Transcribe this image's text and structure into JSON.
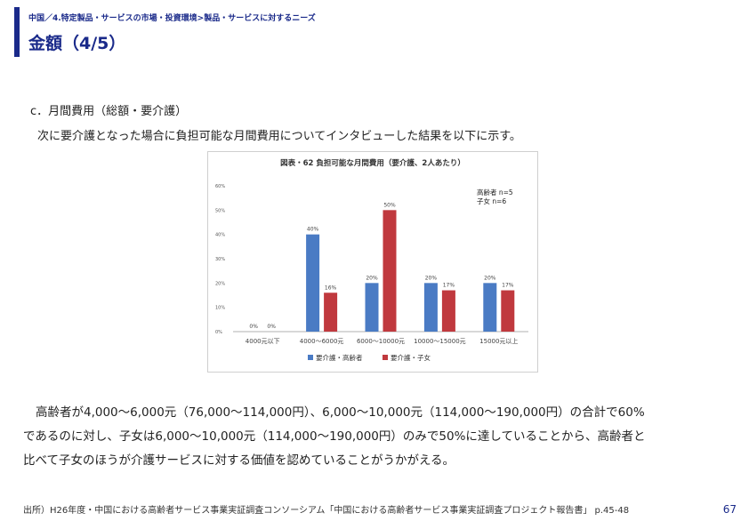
{
  "header": {
    "breadcrumb": "中国／4.特定製品・サービスの市場・投資環境>製品・サービスに対するニーズ",
    "title": "金額（4/5）"
  },
  "section": {
    "heading": "c．月間費用（総額・要介護）",
    "intro": "次に要介護となった場合に負担可能な月間費用についてインタビューした結果を以下に示す。"
  },
  "chart_data": {
    "type": "bar",
    "title": "図表・62 負担可能な月間費用（要介護、2人あたり）",
    "categories": [
      "4000元以下",
      "4000～6000元",
      "6000～10000元",
      "10000～15000元",
      "15000元以上"
    ],
    "series": [
      {
        "name": "要介護・高齢者",
        "color": "#4a7bc4",
        "values": [
          0,
          40,
          20,
          20,
          20
        ]
      },
      {
        "name": "要介護・子女",
        "color": "#c0393e",
        "values": [
          0,
          16,
          50,
          17,
          17
        ]
      }
    ],
    "data_labels": [
      [
        "0%",
        "40%",
        "20%",
        "20%",
        "20%"
      ],
      [
        "0%",
        "16%",
        "50%",
        "17%",
        "17%"
      ]
    ],
    "yticks": [
      "0%",
      "10%",
      "20%",
      "30%",
      "40%",
      "50%",
      "60%"
    ],
    "ylim": [
      0,
      60
    ],
    "annotation": [
      "高齢者 n=5",
      "子女 n=6"
    ],
    "legend_position": "bottom",
    "grid": false
  },
  "summary": {
    "lines": [
      "高齢者が4,000～6,000元（76,000～114,000円）、6,000～10,000元（114,000～190,000円）の合計で60%",
      "であるのに対し、子女は6,000～10,000元（114,000～190,000円）のみで50%に達していることから、高齢者と",
      "比べて子女のほうが介護サービスに対する価値を認めていることがうかがえる。"
    ]
  },
  "footer": {
    "source": "出所）H26年度・中国における高齢者サービス事業実証調査コンソーシアム「中国における高齢者サービス事業実証調査プロジェクト報告書」 p.45-48",
    "page_number": "67"
  }
}
